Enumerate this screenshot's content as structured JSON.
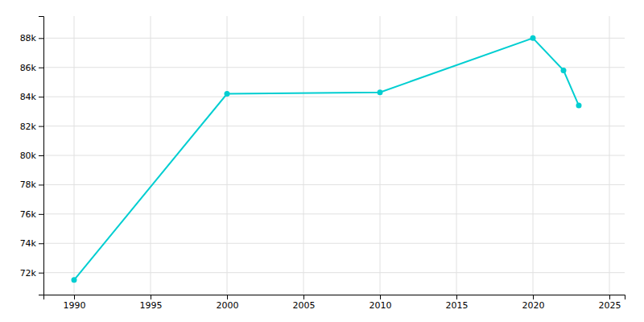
{
  "chart_data": {
    "type": "line",
    "x": [
      1990,
      2000,
      2010,
      2020,
      2022,
      2023
    ],
    "values": [
      71500,
      84200,
      84300,
      88000,
      85800,
      83400
    ],
    "color": "#00CED1",
    "marker": "circle",
    "xlim": [
      1988,
      2026
    ],
    "xticks": [
      1990,
      1995,
      2000,
      2005,
      2010,
      2015,
      2020,
      2025
    ],
    "ylim": [
      70500,
      89500
    ],
    "yticks": [
      {
        "value": 72000,
        "label": "72k"
      },
      {
        "value": 74000,
        "label": "74k"
      },
      {
        "value": 76000,
        "label": "76k"
      },
      {
        "value": 78000,
        "label": "78k"
      },
      {
        "value": 80000,
        "label": "80k"
      },
      {
        "value": 82000,
        "label": "82k"
      },
      {
        "value": 84000,
        "label": "84k"
      },
      {
        "value": 86000,
        "label": "86k"
      },
      {
        "value": 88000,
        "label": "88k"
      }
    ],
    "grid": true
  }
}
